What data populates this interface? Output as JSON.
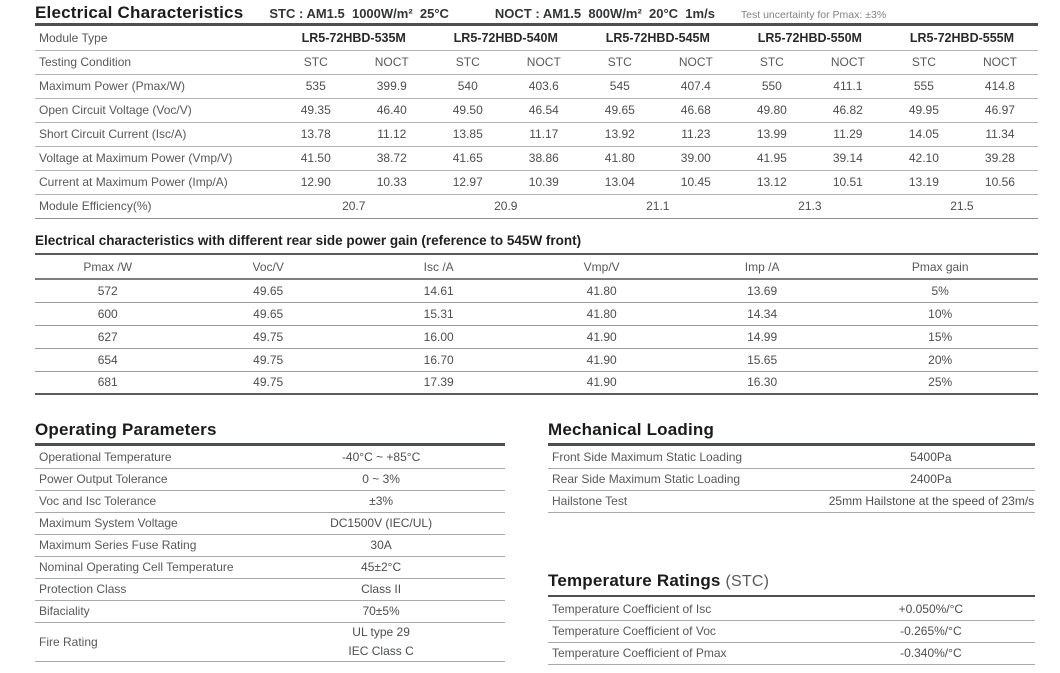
{
  "header": {
    "title": "Electrical Characteristics",
    "stc": "STC : AM1.5  1000W/m²  25°C",
    "noct": "NOCT : AM1.5  800W/m²  20°C  1m/s",
    "uncertainty": "Test uncertainty for Pmax: ±3%"
  },
  "main_table": {
    "module_type_label": "Module Type",
    "testing_condition_label": "Testing Condition",
    "modules": [
      "LR5-72HBD-535M",
      "LR5-72HBD-540M",
      "LR5-72HBD-545M",
      "LR5-72HBD-550M",
      "LR5-72HBD-555M"
    ],
    "condition_labels": [
      "STC",
      "NOCT"
    ],
    "rows": [
      {
        "label": "Maximum Power (Pmax/W)",
        "values": [
          "535",
          "399.9",
          "540",
          "403.6",
          "545",
          "407.4",
          "550",
          "411.1",
          "555",
          "414.8"
        ]
      },
      {
        "label": "Open Circuit Voltage (Voc/V)",
        "values": [
          "49.35",
          "46.40",
          "49.50",
          "46.54",
          "49.65",
          "46.68",
          "49.80",
          "46.82",
          "49.95",
          "46.97"
        ]
      },
      {
        "label": "Short Circuit Current (Isc/A)",
        "values": [
          "13.78",
          "11.12",
          "13.85",
          "11.17",
          "13.92",
          "11.23",
          "13.99",
          "11.29",
          "14.05",
          "11.34"
        ]
      },
      {
        "label": "Voltage at Maximum Power (Vmp/V)",
        "values": [
          "41.50",
          "38.72",
          "41.65",
          "38.86",
          "41.80",
          "39.00",
          "41.95",
          "39.14",
          "42.10",
          "39.28"
        ]
      },
      {
        "label": "Current at Maximum Power (Imp/A)",
        "values": [
          "12.90",
          "10.33",
          "12.97",
          "10.39",
          "13.04",
          "10.45",
          "13.12",
          "10.51",
          "13.19",
          "10.56"
        ]
      }
    ],
    "efficiency": {
      "label": "Module Efficiency(%)",
      "values": [
        "20.7",
        "20.9",
        "21.1",
        "21.3",
        "21.5"
      ]
    }
  },
  "rear_gain_table": {
    "title": "Electrical characteristics with different rear side power gain (reference to 545W front)",
    "columns": [
      "Pmax /W",
      "Voc/V",
      "Isc /A",
      "Vmp/V",
      "Imp /A",
      "Pmax gain"
    ],
    "rows": [
      [
        "572",
        "49.65",
        "14.61",
        "41.80",
        "13.69",
        "5%"
      ],
      [
        "600",
        "49.65",
        "15.31",
        "41.80",
        "14.34",
        "10%"
      ],
      [
        "627",
        "49.75",
        "16.00",
        "41.90",
        "14.99",
        "15%"
      ],
      [
        "654",
        "49.75",
        "16.70",
        "41.90",
        "15.65",
        "20%"
      ],
      [
        "681",
        "49.75",
        "17.39",
        "41.90",
        "16.30",
        "25%"
      ]
    ]
  },
  "operating_parameters": {
    "title": "Operating Parameters",
    "rows": [
      {
        "label": "Operational Temperature",
        "value": "-40°C ~ +85°C"
      },
      {
        "label": "Power Output Tolerance",
        "value": "0 ~ 3%"
      },
      {
        "label": "Voc and Isc Tolerance",
        "value": "±3%"
      },
      {
        "label": "Maximum System Voltage",
        "value": "DC1500V (IEC/UL)"
      },
      {
        "label": "Maximum Series Fuse Rating",
        "value": "30A"
      },
      {
        "label": "Nominal Operating Cell Temperature",
        "value": "45±2°C"
      },
      {
        "label": "Protection Class",
        "value": "Class II"
      },
      {
        "label": "Bifaciality",
        "value": "70±5%"
      },
      {
        "label": "Fire Rating",
        "value_lines": [
          "UL type 29",
          "IEC Class C"
        ]
      }
    ]
  },
  "mechanical_loading": {
    "title": "Mechanical Loading",
    "rows": [
      {
        "label": "Front Side Maximum Static Loading",
        "value": "5400Pa"
      },
      {
        "label": "Rear Side Maximum Static Loading",
        "value": "2400Pa"
      },
      {
        "label": "Hailstone Test",
        "value": "25mm Hailstone at the speed of 23m/s"
      }
    ]
  },
  "temperature_ratings": {
    "title": "Temperature Ratings",
    "title_suffix": "(STC)",
    "rows": [
      {
        "label": "Temperature Coefficient of  Isc",
        "value": "+0.050%/°C"
      },
      {
        "label": "Temperature Coefficient of  Voc",
        "value": "-0.265%/°C"
      },
      {
        "label": "Temperature Coefficient of  Pmax",
        "value": "-0.340%/°C"
      }
    ]
  }
}
